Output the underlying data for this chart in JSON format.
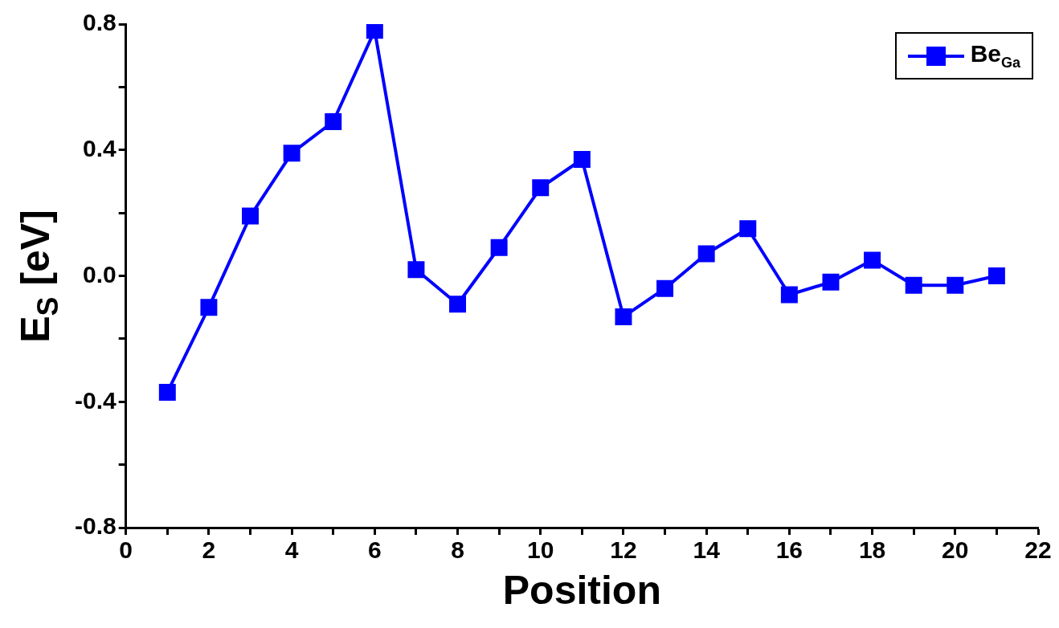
{
  "chart_data": {
    "type": "line",
    "xlabel": "Position",
    "ylabel": "E$_{S}$ [eV]",
    "x": [
      1,
      2,
      3,
      4,
      5,
      6,
      7,
      8,
      9,
      10,
      11,
      12,
      13,
      14,
      15,
      16,
      17,
      18,
      19,
      20,
      21
    ],
    "series": [
      {
        "name": "Be$_{Ga}$",
        "color": "#0000ff",
        "values": [
          -0.37,
          -0.1,
          0.19,
          0.39,
          0.49,
          0.78,
          0.02,
          -0.09,
          0.09,
          0.28,
          0.37,
          -0.13,
          -0.04,
          0.07,
          0.15,
          -0.06,
          -0.02,
          0.05,
          -0.03,
          -0.03,
          0.0
        ]
      }
    ],
    "xlim": [
      0,
      22
    ],
    "xticks": [
      0,
      {
        "value": 1,
        "label": null
      },
      2,
      {
        "value": 3,
        "label": null
      },
      4,
      {
        "value": 5,
        "label": null
      },
      6,
      {
        "value": 7,
        "label": null
      },
      8,
      {
        "value": 9,
        "label": null
      },
      10,
      {
        "value": 11,
        "label": null
      },
      12,
      {
        "value": 13,
        "label": null
      },
      14,
      {
        "value": 15,
        "label": null
      },
      16,
      {
        "value": 17,
        "label": null
      },
      18,
      {
        "value": 19,
        "label": null
      },
      20,
      {
        "value": 21,
        "label": null
      },
      22
    ],
    "ylim": [
      -0.8,
      0.8
    ],
    "yticks": [
      {
        "value": -0.8,
        "label": "-0.8"
      },
      {
        "value": -0.6,
        "label": null
      },
      {
        "value": -0.4,
        "label": "-0.4"
      },
      {
        "value": -0.2,
        "label": null
      },
      {
        "value": 0,
        "label": "0.0"
      },
      {
        "value": 0.2,
        "label": null
      },
      {
        "value": 0.4,
        "label": "0.4"
      },
      {
        "value": 0.6,
        "label": null
      },
      {
        "value": 0.8,
        "label": "0.8"
      }
    ],
    "grid": false,
    "legend": "top right",
    "marker": "square",
    "line_style": "solid"
  }
}
